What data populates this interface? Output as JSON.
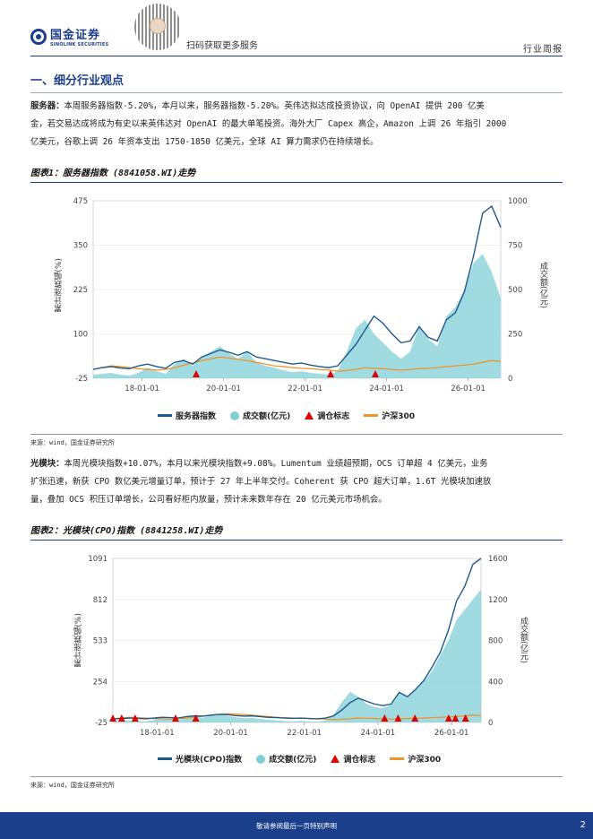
{
  "header": {
    "logo_cn": "国金证券",
    "logo_en": "SINOLINK SECURITIES",
    "scan_text": "扫码获取更多服务",
    "doc_type": "行业周报"
  },
  "section": {
    "title": "一、细分行业观点"
  },
  "para1": {
    "lead": "服务器：",
    "line1": "本周服务器指数-5.20%，本月以来，服务器指数-5.20%。英伟达拟达成投资协议，向 OpenAI 提供 200 亿美",
    "line2": "金，若交易达成将成为有史以来英伟达对 OpenAI 的最大单笔投资。海外大厂 Capex 高企，Amazon 上调 26 年指引 2000",
    "line3": "亿美元，谷歌上调 26 年资本支出 1750-1850 亿美元，全球 AI 算力需求仍在持续增长。"
  },
  "fig1": {
    "title": "图表1：服务器指数 (8841058.WI)走势",
    "source": "来源：wind，国金证券研究所",
    "ylabel_left": "累计涨跌幅(%)",
    "ylabel_right": "成交额(亿元)",
    "legend": [
      "服务器指数",
      "成交额(亿元)",
      "调仓标志",
      "沪深300"
    ]
  },
  "para2": {
    "lead": "光模块：",
    "line1": "本周光模块指数+10.07%，本月以来光模块指数+9.08%。Lumentum 业绩超预期，OCS 订单超 4 亿美元，业务",
    "line2": "扩张迅速，新获 CPO 数亿美元增量订单，预计于 27 年上半年交付。Coherent 获 CPO 超大订单，1.6T 光模块加速放",
    "line3": "量，叠加 OCS 积压订单增长，公司看好柜内放量，预计未来数年存在 20 亿元美元市场机会。"
  },
  "fig2": {
    "title": "图表2：光模块(CPO)指数 (8841258.WI)走势",
    "source": "来源：wind，国金证券研究所",
    "ylabel_left": "累计涨跌幅(%)",
    "ylabel_right": "成交额(亿元)",
    "legend": [
      "光模块(CPO)指数",
      "成交额(亿元)",
      "调仓标志",
      "沪深300"
    ]
  },
  "footer": {
    "text": "敬请参阅最后一页特别声明",
    "page": "2"
  },
  "colors": {
    "index_line": "#1f5a8c",
    "volume_fill": "#7fcfd6",
    "hs300_line": "#f0932b",
    "marker": "#e00000"
  },
  "chart_data": [
    {
      "type": "line",
      "title": "服务器指数 (8841058.WI)走势",
      "x_ticks": [
        "18-01-01",
        "20-01-01",
        "22-01-01",
        "24-01-01",
        "26-01-01"
      ],
      "y_left_ticks": [
        -25,
        100,
        225,
        350,
        475
      ],
      "y_right_ticks": [
        0,
        250,
        500,
        750,
        1000
      ],
      "ylim_left": [
        -25,
        475
      ],
      "ylim_right": [
        0,
        1000
      ],
      "series": [
        {
          "name": "服务器指数",
          "axis": "left",
          "values": [
            0,
            5,
            8,
            4,
            2,
            10,
            15,
            8,
            3,
            20,
            25,
            15,
            35,
            45,
            55,
            48,
            40,
            50,
            35,
            30,
            25,
            20,
            15,
            18,
            12,
            8,
            5,
            10,
            40,
            70,
            110,
            150,
            130,
            100,
            75,
            80,
            120,
            90,
            80,
            140,
            160,
            220,
            320,
            440,
            460,
            400
          ]
        },
        {
          "name": "成交额(亿元)",
          "axis": "right",
          "values": [
            20,
            25,
            30,
            20,
            15,
            30,
            60,
            40,
            25,
            80,
            110,
            70,
            120,
            150,
            180,
            140,
            110,
            150,
            90,
            70,
            60,
            45,
            35,
            40,
            30,
            25,
            20,
            40,
            150,
            280,
            330,
            250,
            200,
            150,
            110,
            150,
            300,
            220,
            180,
            350,
            400,
            500,
            650,
            700,
            600,
            450
          ]
        },
        {
          "name": "沪深300",
          "axis": "left",
          "values": [
            0,
            5,
            10,
            8,
            5,
            2,
            0,
            -2,
            0,
            5,
            12,
            18,
            25,
            30,
            35,
            32,
            28,
            25,
            20,
            15,
            10,
            8,
            5,
            3,
            2,
            0,
            -2,
            -5,
            -3,
            0,
            5,
            3,
            2,
            0,
            -2,
            0,
            2,
            3,
            5,
            8,
            10,
            12,
            15,
            20,
            25,
            22
          ]
        }
      ],
      "markers_x": [
        "19-07",
        "22-07",
        "23-07"
      ]
    },
    {
      "type": "line",
      "title": "光模块(CPO)指数 (8841258.WI)走势",
      "x_ticks": [
        "18-01-01",
        "20-01-01",
        "22-01-01",
        "24-01-01",
        "26-01-01"
      ],
      "y_left_ticks": [
        -25,
        254,
        533,
        812,
        1091
      ],
      "y_right_ticks": [
        0,
        400,
        800,
        1200,
        1600
      ],
      "ylim_left": [
        -25,
        1091
      ],
      "ylim_right": [
        0,
        1600
      ],
      "series": [
        {
          "name": "光模块(CPO)指数",
          "axis": "left",
          "values": [
            0,
            2,
            5,
            3,
            0,
            5,
            10,
            8,
            5,
            15,
            20,
            18,
            25,
            30,
            28,
            22,
            18,
            20,
            15,
            10,
            8,
            5,
            3,
            5,
            2,
            0,
            5,
            20,
            60,
            110,
            140,
            120,
            100,
            90,
            100,
            180,
            150,
            200,
            260,
            350,
            450,
            600,
            800,
            900,
            1050,
            1091
          ]
        },
        {
          "name": "成交额(亿元)",
          "axis": "right",
          "values": [
            10,
            15,
            20,
            15,
            10,
            25,
            40,
            30,
            20,
            50,
            60,
            45,
            70,
            80,
            65,
            50,
            40,
            45,
            35,
            25,
            20,
            15,
            10,
            15,
            10,
            8,
            20,
            80,
            200,
            300,
            250,
            180,
            150,
            140,
            170,
            300,
            250,
            320,
            400,
            500,
            650,
            800,
            1000,
            1100,
            1200,
            1300
          ]
        },
        {
          "name": "沪深300",
          "axis": "left",
          "values": [
            0,
            5,
            10,
            8,
            5,
            2,
            0,
            -2,
            0,
            5,
            12,
            18,
            25,
            30,
            35,
            32,
            28,
            25,
            20,
            15,
            10,
            8,
            5,
            3,
            2,
            0,
            -2,
            -5,
            -3,
            0,
            5,
            3,
            2,
            0,
            -2,
            0,
            2,
            3,
            5,
            8,
            10,
            12,
            15,
            20,
            25,
            22
          ]
        }
      ],
      "markers_x": [
        "17-01",
        "17-06",
        "17-10",
        "18-10",
        "19-04",
        "23-12",
        "24-04",
        "24-09",
        "25-07",
        "25-09",
        "25-12"
      ]
    }
  ]
}
